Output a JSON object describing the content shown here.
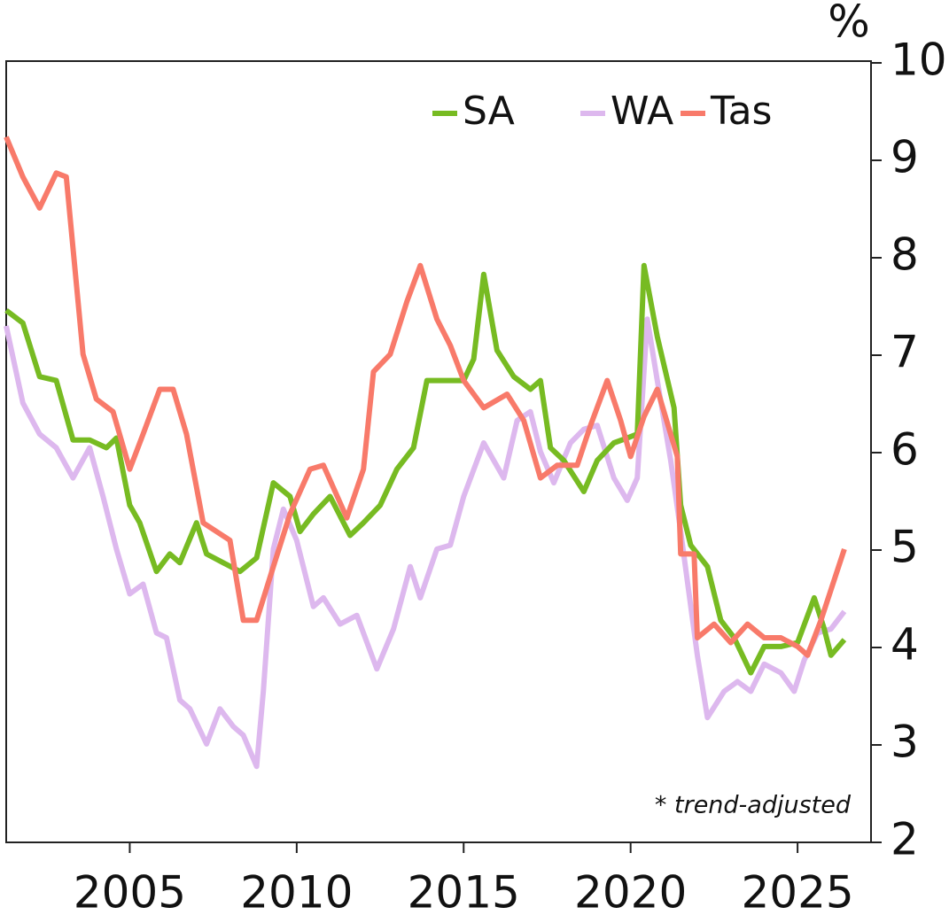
{
  "chart_data": {
    "type": "line",
    "unit_label": "%",
    "annotation": "* trend-adjusted",
    "xlim": [
      2001.3,
      2027.2
    ],
    "xticks": [
      2005,
      2010,
      2015,
      2020,
      2025
    ],
    "ylim": [
      2,
      10
    ],
    "yticks": [
      2,
      3,
      4,
      5,
      6,
      7,
      8,
      9,
      10
    ],
    "legend": "top-right",
    "series": [
      {
        "name": "SA",
        "color": "#77bb22",
        "x": [
          2001.3,
          2001.8,
          2002.3,
          2002.8,
          2003.3,
          2003.8,
          2004.3,
          2004.6,
          2005.0,
          2005.3,
          2005.8,
          2006.2,
          2006.5,
          2007.0,
          2007.3,
          2007.8,
          2008.3,
          2008.8,
          2009.3,
          2009.8,
          2010.1,
          2010.5,
          2011.0,
          2011.6,
          2012.0,
          2012.5,
          2013.0,
          2013.5,
          2013.9,
          2014.5,
          2015.0,
          2015.3,
          2015.6,
          2016.0,
          2016.5,
          2017.0,
          2017.3,
          2017.6,
          2018.0,
          2018.6,
          2019.0,
          2019.5,
          2019.9,
          2020.2,
          2020.4,
          2020.8,
          2021.3,
          2021.5,
          2021.8,
          2022.3,
          2022.7,
          2023.1,
          2023.6,
          2024.0,
          2024.5,
          2025.0,
          2025.5,
          2025.8,
          2026.0,
          2026.4
        ],
        "values": [
          7.46,
          7.33,
          6.78,
          6.74,
          6.13,
          6.13,
          6.05,
          6.15,
          5.46,
          5.28,
          4.78,
          4.96,
          4.87,
          5.28,
          4.96,
          4.87,
          4.78,
          4.92,
          5.69,
          5.55,
          5.19,
          5.37,
          5.55,
          5.15,
          5.28,
          5.46,
          5.83,
          6.05,
          6.74,
          6.74,
          6.74,
          6.96,
          7.83,
          7.05,
          6.78,
          6.65,
          6.74,
          6.05,
          5.92,
          5.6,
          5.92,
          6.1,
          6.15,
          6.19,
          7.92,
          7.19,
          6.46,
          5.46,
          5.05,
          4.83,
          4.28,
          4.1,
          3.74,
          4.01,
          4.01,
          4.05,
          4.51,
          4.19,
          3.92,
          4.08
        ]
      },
      {
        "name": "WA",
        "color": "#ddb8ee",
        "x": [
          2001.3,
          2001.8,
          2002.3,
          2002.8,
          2003.3,
          2003.8,
          2004.2,
          2004.6,
          2005.0,
          2005.4,
          2005.8,
          2006.1,
          2006.5,
          2006.8,
          2007.3,
          2007.7,
          2008.1,
          2008.4,
          2008.8,
          2009.0,
          2009.3,
          2009.6,
          2010.0,
          2010.5,
          2010.8,
          2011.3,
          2011.8,
          2012.4,
          2012.9,
          2013.4,
          2013.7,
          2014.2,
          2014.6,
          2015.0,
          2015.6,
          2016.2,
          2016.6,
          2017.0,
          2017.3,
          2017.7,
          2018.2,
          2018.6,
          2019.0,
          2019.5,
          2019.9,
          2020.2,
          2020.5,
          2020.8,
          2021.2,
          2021.5,
          2022.0,
          2022.3,
          2022.8,
          2023.2,
          2023.6,
          2024.0,
          2024.5,
          2024.9,
          2025.2,
          2025.6,
          2026.0,
          2026.4
        ],
        "values": [
          7.3,
          6.51,
          6.19,
          6.05,
          5.74,
          6.05,
          5.55,
          5.01,
          4.55,
          4.65,
          4.15,
          4.1,
          3.46,
          3.37,
          3.01,
          3.37,
          3.19,
          3.1,
          2.78,
          3.55,
          5.01,
          5.42,
          5.1,
          4.42,
          4.51,
          4.24,
          4.33,
          3.78,
          4.19,
          4.83,
          4.51,
          5.01,
          5.05,
          5.55,
          6.1,
          5.74,
          6.33,
          6.42,
          6.01,
          5.69,
          6.1,
          6.24,
          6.28,
          5.74,
          5.51,
          5.74,
          7.37,
          6.74,
          5.92,
          5.19,
          3.92,
          3.28,
          3.55,
          3.65,
          3.55,
          3.83,
          3.74,
          3.55,
          3.87,
          4.15,
          4.19,
          4.37
        ]
      },
      {
        "name": "Tas",
        "color": "#f87a6a",
        "x": [
          2001.3,
          2001.8,
          2002.3,
          2002.8,
          2003.1,
          2003.6,
          2004.0,
          2004.5,
          2005.0,
          2005.4,
          2005.9,
          2006.3,
          2006.7,
          2007.2,
          2007.6,
          2008.0,
          2008.4,
          2008.8,
          2009.3,
          2009.8,
          2010.4,
          2010.8,
          2011.5,
          2012.0,
          2012.3,
          2012.8,
          2013.3,
          2013.7,
          2014.2,
          2014.6,
          2015.0,
          2015.6,
          2016.3,
          2016.8,
          2017.3,
          2017.8,
          2018.4,
          2018.8,
          2019.3,
          2019.7,
          2020.0,
          2020.4,
          2020.8,
          2021.4,
          2021.5,
          2021.9,
          2022.0,
          2022.5,
          2023.0,
          2023.5,
          2024.0,
          2024.5,
          2025.0,
          2025.3,
          2025.7,
          2026.4
        ],
        "values": [
          9.24,
          8.83,
          8.51,
          8.87,
          8.83,
          7.01,
          6.55,
          6.42,
          5.83,
          6.19,
          6.65,
          6.65,
          6.19,
          5.28,
          5.19,
          5.1,
          4.28,
          4.28,
          4.83,
          5.37,
          5.83,
          5.87,
          5.33,
          5.83,
          6.83,
          7.01,
          7.55,
          7.92,
          7.37,
          7.1,
          6.74,
          6.46,
          6.6,
          6.33,
          5.74,
          5.87,
          5.87,
          6.28,
          6.74,
          6.33,
          5.96,
          6.37,
          6.65,
          5.96,
          4.96,
          4.96,
          4.1,
          4.24,
          4.05,
          4.24,
          4.1,
          4.1,
          4.01,
          3.92,
          4.28,
          5.01
        ]
      }
    ]
  }
}
